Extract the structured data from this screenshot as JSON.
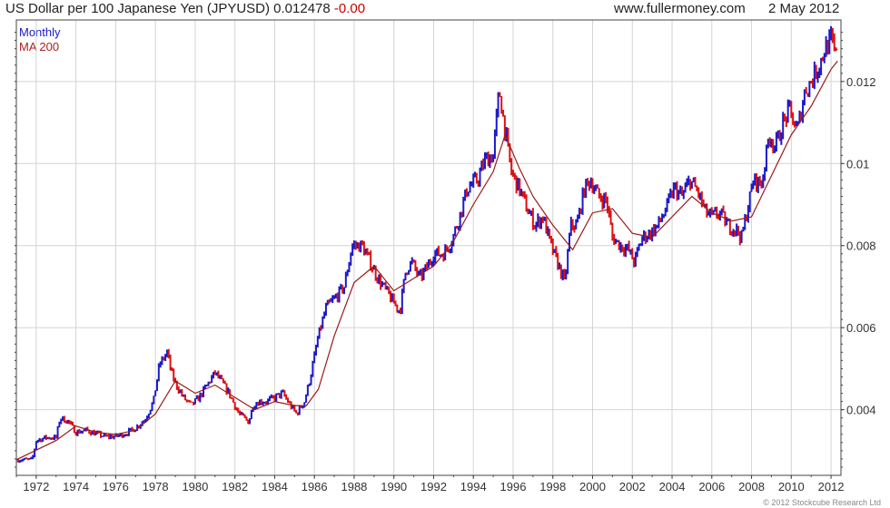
{
  "header": {
    "title": "US Dollar per 100 Japanese Yen (JPYUSD)",
    "last_value": "0.012478",
    "change": "-0.00",
    "site": "www.fullermoney.com",
    "date": "2 May 2012"
  },
  "legend": {
    "monthly_label": "Monthly",
    "ma_label": "MA 200"
  },
  "copyright": "© 2012 Stockcube Research Ltd",
  "colors": {
    "up_bar": "#1a1acc",
    "down_bar": "#dd1111",
    "ma_line": "#9a1a1a",
    "grid": "#d4d4d4",
    "axis": "#444444"
  },
  "chart_data": {
    "type": "line",
    "style": "monthly price bars (blue = up month, red = down month) with 200-period moving average",
    "title": "US Dollar per 100 Japanese Yen (JPYUSD)",
    "xlabel": "",
    "ylabel": "",
    "xlim": [
      1971.0,
      2012.5
    ],
    "ylim": [
      0.0024,
      0.0135
    ],
    "x_ticks": [
      "1972",
      "1974",
      "1976",
      "1978",
      "1980",
      "1982",
      "1984",
      "1986",
      "1988",
      "1990",
      "1992",
      "1994",
      "1996",
      "1998",
      "2000",
      "2002",
      "2004",
      "2006",
      "2008",
      "2010",
      "2012"
    ],
    "y_ticks": [
      "0.004",
      "0.006",
      "0.008",
      "0.01",
      "0.012"
    ],
    "y_tick_values": [
      0.004,
      0.006,
      0.008,
      0.01,
      0.012
    ],
    "grid": true,
    "legend_position": "top-left",
    "series": [
      {
        "name": "Monthly",
        "x": [
          1971.0,
          1971.8,
          1972.0,
          1972.5,
          1973.0,
          1973.2,
          1973.6,
          1974.0,
          1974.5,
          1975.0,
          1975.5,
          1976.0,
          1976.5,
          1977.0,
          1977.5,
          1977.9,
          1978.2,
          1978.6,
          1978.8,
          1979.0,
          1979.4,
          1979.8,
          1980.2,
          1980.6,
          1981.0,
          1981.3,
          1981.7,
          1982.2,
          1982.7,
          1982.9,
          1983.2,
          1983.6,
          1984.0,
          1984.4,
          1984.8,
          1985.1,
          1985.5,
          1985.8,
          1986.2,
          1986.6,
          1987.0,
          1987.5,
          1987.9,
          1988.4,
          1988.8,
          1989.2,
          1989.6,
          1990.0,
          1990.3,
          1990.6,
          1990.9,
          1991.3,
          1991.7,
          1992.0,
          1992.5,
          1992.9,
          1993.3,
          1993.7,
          1994.2,
          1994.6,
          1995.0,
          1995.3,
          1995.6,
          1995.9,
          1996.3,
          1996.7,
          1997.1,
          1997.5,
          1997.9,
          1998.3,
          1998.6,
          1998.9,
          1999.2,
          1999.6,
          1999.9,
          2000.3,
          2000.7,
          2001.0,
          2001.4,
          2001.8,
          2002.1,
          2002.5,
          2002.9,
          2003.3,
          2003.7,
          2004.1,
          2004.5,
          2004.9,
          2005.3,
          2005.7,
          2006.0,
          2006.4,
          2006.8,
          2007.2,
          2007.5,
          2007.8,
          2008.1,
          2008.5,
          2008.9,
          2009.2,
          2009.6,
          2009.9,
          2010.3,
          2010.7,
          2011.0,
          2011.4,
          2011.7,
          2012.0,
          2012.33
        ],
        "values": [
          0.00278,
          0.00278,
          0.00325,
          0.00332,
          0.00332,
          0.0038,
          0.00372,
          0.00345,
          0.0035,
          0.00342,
          0.00334,
          0.00335,
          0.00342,
          0.00355,
          0.00378,
          0.0042,
          0.0051,
          0.0054,
          0.0049,
          0.00465,
          0.0043,
          0.0041,
          0.0043,
          0.0046,
          0.0049,
          0.0047,
          0.0044,
          0.0039,
          0.0037,
          0.0041,
          0.0042,
          0.0042,
          0.0043,
          0.0044,
          0.0041,
          0.0039,
          0.0042,
          0.0048,
          0.0058,
          0.0065,
          0.0067,
          0.007,
          0.008,
          0.008,
          0.0076,
          0.0072,
          0.0069,
          0.0066,
          0.0064,
          0.0074,
          0.0076,
          0.0072,
          0.0075,
          0.0078,
          0.0078,
          0.0081,
          0.0087,
          0.0094,
          0.0096,
          0.0101,
          0.0102,
          0.0118,
          0.0108,
          0.0098,
          0.0094,
          0.0089,
          0.0085,
          0.0087,
          0.008,
          0.0075,
          0.0071,
          0.0085,
          0.0085,
          0.0094,
          0.0096,
          0.0092,
          0.0091,
          0.0082,
          0.008,
          0.0079,
          0.0076,
          0.0082,
          0.0083,
          0.0085,
          0.0089,
          0.0094,
          0.0092,
          0.0096,
          0.0093,
          0.0088,
          0.0087,
          0.0088,
          0.0085,
          0.0084,
          0.0082,
          0.0089,
          0.0096,
          0.0095,
          0.0107,
          0.0104,
          0.011,
          0.0113,
          0.0108,
          0.0118,
          0.012,
          0.0124,
          0.0128,
          0.013,
          0.01248
        ]
      },
      {
        "name": "MA 200",
        "x": [
          1971.0,
          1973.0,
          1974.0,
          1975.0,
          1976.0,
          1977.0,
          1978.0,
          1979.0,
          1980.0,
          1981.0,
          1982.0,
          1983.0,
          1984.0,
          1985.0,
          1985.6,
          1986.2,
          1987.0,
          1988.0,
          1989.0,
          1990.0,
          1991.0,
          1992.0,
          1993.0,
          1994.0,
          1995.0,
          1995.6,
          1996.3,
          1997.0,
          1998.0,
          1999.0,
          2000.0,
          2001.0,
          2002.0,
          2003.0,
          2004.0,
          2005.0,
          2006.0,
          2007.0,
          2008.0,
          2009.0,
          2010.0,
          2011.0,
          2012.0,
          2012.33
        ],
        "values": [
          0.00278,
          0.00325,
          0.0036,
          0.00345,
          0.0034,
          0.0035,
          0.0039,
          0.0047,
          0.0044,
          0.0046,
          0.0043,
          0.004,
          0.0042,
          0.0041,
          0.0041,
          0.0045,
          0.0058,
          0.0071,
          0.0075,
          0.0069,
          0.0072,
          0.0075,
          0.0081,
          0.009,
          0.0098,
          0.0107,
          0.0099,
          0.0092,
          0.0085,
          0.0079,
          0.0088,
          0.0089,
          0.0083,
          0.0082,
          0.0087,
          0.0092,
          0.0088,
          0.0086,
          0.0087,
          0.0097,
          0.0107,
          0.0114,
          0.0123,
          0.0125
        ]
      }
    ]
  }
}
